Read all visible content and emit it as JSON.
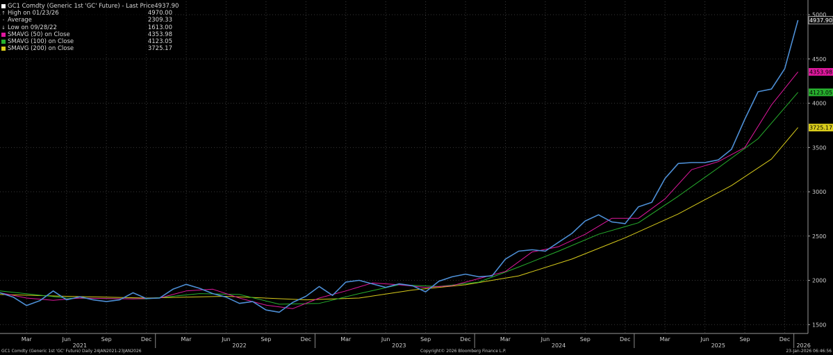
{
  "legend": {
    "title": "GC1 Comdty (Generic 1st 'GC' Future) - Last Price",
    "title_value": "4937.90",
    "rows": [
      {
        "label": "High on 01/23/26",
        "value": "4970.00",
        "glyph": "↑"
      },
      {
        "label": "Average",
        "value": "2309.33",
        "glyph": "-"
      },
      {
        "label": "Low on 09/28/22",
        "value": "1613.00",
        "glyph": "↓"
      },
      {
        "label": "SMAVG (50)  on Close",
        "value": "4353.98",
        "color": "#e0189e"
      },
      {
        "label": "SMAVG (100)  on Close",
        "value": "4123.05",
        "color": "#27b12e"
      },
      {
        "label": "SMAVG (200)  on Close",
        "value": "3725.17",
        "color": "#d9cc1b"
      }
    ]
  },
  "footer": {
    "left": "GC1 Comdty (Generic 1st 'GC' Future) Daily 24JAN2021-23JAN2026",
    "center": "Copyright© 2026 Bloomberg Finance L.P.",
    "right": "23-Jan-2026 06:46:56"
  },
  "chart_data": {
    "type": "line",
    "x_start": "2021-01",
    "x_end": "2026-01",
    "ylim": [
      1400,
      5150
    ],
    "yticks": [
      1500,
      2000,
      2500,
      3000,
      3500,
      4000,
      4500,
      5000
    ],
    "month_labels": [
      {
        "date": "2021-03",
        "label": "Mar"
      },
      {
        "date": "2021-06",
        "label": "Jun"
      },
      {
        "date": "2021-09",
        "label": "Sep"
      },
      {
        "date": "2021-12",
        "label": "Dec"
      },
      {
        "date": "2022-03",
        "label": "Mar"
      },
      {
        "date": "2022-06",
        "label": "Jun"
      },
      {
        "date": "2022-09",
        "label": "Sep"
      },
      {
        "date": "2022-12",
        "label": "Dec"
      },
      {
        "date": "2023-03",
        "label": "Mar"
      },
      {
        "date": "2023-06",
        "label": "Jun"
      },
      {
        "date": "2023-09",
        "label": "Sep"
      },
      {
        "date": "2023-12",
        "label": "Dec"
      },
      {
        "date": "2024-03",
        "label": "Mar"
      },
      {
        "date": "2024-06",
        "label": "Jun"
      },
      {
        "date": "2024-09",
        "label": "Sep"
      },
      {
        "date": "2024-12",
        "label": "Dec"
      },
      {
        "date": "2025-03",
        "label": "Mar"
      },
      {
        "date": "2025-06",
        "label": "Jun"
      },
      {
        "date": "2025-09",
        "label": "Sep"
      },
      {
        "date": "2025-12",
        "label": "Dec"
      }
    ],
    "year_labels": [
      {
        "date": "2021-07",
        "label": "2021"
      },
      {
        "date": "2022-07",
        "label": "2022"
      },
      {
        "date": "2023-07",
        "label": "2023"
      },
      {
        "date": "2024-07",
        "label": "2024"
      },
      {
        "date": "2025-07",
        "label": "2025"
      },
      {
        "date": "2026-01",
        "label": "2026"
      }
    ],
    "last_value_tags": [
      {
        "value": 4937.9,
        "label": "4937.90",
        "bg": "#111111",
        "fg": "#ffffff",
        "border": "#ffffff"
      },
      {
        "value": 4353.98,
        "label": "4353.98",
        "bg": "#e0189e",
        "fg": "#000000"
      },
      {
        "value": 4123.05,
        "label": "4123.05",
        "bg": "#27b12e",
        "fg": "#000000"
      },
      {
        "value": 3725.17,
        "label": "3725.17",
        "bg": "#d9cc1b",
        "fg": "#000000"
      }
    ],
    "series": [
      {
        "name": "Last Price",
        "color": "#4d8fd6",
        "points": [
          [
            "2021-01",
            1860
          ],
          [
            "2021-02",
            1810
          ],
          [
            "2021-03",
            1715
          ],
          [
            "2021-04",
            1770
          ],
          [
            "2021-05",
            1880
          ],
          [
            "2021-06",
            1780
          ],
          [
            "2021-07",
            1815
          ],
          [
            "2021-08",
            1780
          ],
          [
            "2021-09",
            1760
          ],
          [
            "2021-10",
            1780
          ],
          [
            "2021-11",
            1860
          ],
          [
            "2021-12",
            1795
          ],
          [
            "2022-01",
            1800
          ],
          [
            "2022-02",
            1900
          ],
          [
            "2022-03",
            1955
          ],
          [
            "2022-04",
            1910
          ],
          [
            "2022-05",
            1850
          ],
          [
            "2022-06",
            1810
          ],
          [
            "2022-07",
            1740
          ],
          [
            "2022-08",
            1760
          ],
          [
            "2022-09",
            1665
          ],
          [
            "2022-10",
            1640
          ],
          [
            "2022-11",
            1750
          ],
          [
            "2022-12",
            1820
          ],
          [
            "2023-01",
            1930
          ],
          [
            "2023-02",
            1830
          ],
          [
            "2023-03",
            1980
          ],
          [
            "2023-04",
            2000
          ],
          [
            "2023-05",
            1960
          ],
          [
            "2023-06",
            1920
          ],
          [
            "2023-07",
            1960
          ],
          [
            "2023-08",
            1940
          ],
          [
            "2023-09",
            1870
          ],
          [
            "2023-10",
            1990
          ],
          [
            "2023-11",
            2040
          ],
          [
            "2023-12",
            2070
          ],
          [
            "2024-01",
            2040
          ],
          [
            "2024-02",
            2050
          ],
          [
            "2024-03",
            2240
          ],
          [
            "2024-04",
            2330
          ],
          [
            "2024-05",
            2345
          ],
          [
            "2024-06",
            2330
          ],
          [
            "2024-07",
            2430
          ],
          [
            "2024-08",
            2530
          ],
          [
            "2024-09",
            2670
          ],
          [
            "2024-10",
            2740
          ],
          [
            "2024-11",
            2660
          ],
          [
            "2024-12",
            2640
          ],
          [
            "2025-01",
            2830
          ],
          [
            "2025-02",
            2880
          ],
          [
            "2025-03",
            3150
          ],
          [
            "2025-04",
            3320
          ],
          [
            "2025-05",
            3330
          ],
          [
            "2025-06",
            3330
          ],
          [
            "2025-07",
            3360
          ],
          [
            "2025-08",
            3480
          ],
          [
            "2025-09",
            3820
          ],
          [
            "2025-10",
            4130
          ],
          [
            "2025-11",
            4160
          ],
          [
            "2025-12",
            4390
          ],
          [
            "2026-01",
            4937.9
          ]
        ]
      },
      {
        "name": "SMAVG (50)  on Close",
        "color": "#e0189e",
        "points": [
          [
            "2021-01",
            1860
          ],
          [
            "2021-03",
            1800
          ],
          [
            "2021-05",
            1775
          ],
          [
            "2021-07",
            1800
          ],
          [
            "2021-09",
            1795
          ],
          [
            "2021-11",
            1790
          ],
          [
            "2022-01",
            1800
          ],
          [
            "2022-03",
            1880
          ],
          [
            "2022-05",
            1900
          ],
          [
            "2022-07",
            1800
          ],
          [
            "2022-09",
            1720
          ],
          [
            "2022-11",
            1680
          ],
          [
            "2023-01",
            1800
          ],
          [
            "2023-03",
            1880
          ],
          [
            "2023-05",
            1970
          ],
          [
            "2023-07",
            1950
          ],
          [
            "2023-09",
            1920
          ],
          [
            "2023-11",
            1940
          ],
          [
            "2024-01",
            2020
          ],
          [
            "2024-03",
            2100
          ],
          [
            "2024-05",
            2320
          ],
          [
            "2024-07",
            2380
          ],
          [
            "2024-09",
            2520
          ],
          [
            "2024-11",
            2700
          ],
          [
            "2025-01",
            2700
          ],
          [
            "2025-03",
            2920
          ],
          [
            "2025-05",
            3250
          ],
          [
            "2025-07",
            3340
          ],
          [
            "2025-09",
            3500
          ],
          [
            "2025-11",
            3980
          ],
          [
            "2026-01",
            4353.98
          ]
        ]
      },
      {
        "name": "SMAVG (100)  on Close",
        "color": "#27b12e",
        "points": [
          [
            "2021-01",
            1880
          ],
          [
            "2021-06",
            1800
          ],
          [
            "2021-12",
            1790
          ],
          [
            "2022-04",
            1850
          ],
          [
            "2022-07",
            1840
          ],
          [
            "2022-10",
            1730
          ],
          [
            "2023-01",
            1740
          ],
          [
            "2023-04",
            1850
          ],
          [
            "2023-07",
            1950
          ],
          [
            "2023-10",
            1930
          ],
          [
            "2024-01",
            1980
          ],
          [
            "2024-04",
            2150
          ],
          [
            "2024-07",
            2330
          ],
          [
            "2024-10",
            2520
          ],
          [
            "2025-01",
            2650
          ],
          [
            "2025-04",
            2950
          ],
          [
            "2025-07",
            3270
          ],
          [
            "2025-10",
            3600
          ],
          [
            "2026-01",
            4123.05
          ]
        ]
      },
      {
        "name": "SMAVG (200)  on Close",
        "color": "#d9cc1b",
        "points": [
          [
            "2021-01",
            1840
          ],
          [
            "2021-06",
            1820
          ],
          [
            "2021-12",
            1800
          ],
          [
            "2022-06",
            1820
          ],
          [
            "2022-12",
            1780
          ],
          [
            "2023-04",
            1800
          ],
          [
            "2023-08",
            1890
          ],
          [
            "2023-12",
            1950
          ],
          [
            "2024-04",
            2050
          ],
          [
            "2024-08",
            2240
          ],
          [
            "2024-12",
            2480
          ],
          [
            "2025-04",
            2750
          ],
          [
            "2025-08",
            3070
          ],
          [
            "2025-11",
            3370
          ],
          [
            "2026-01",
            3725.17
          ]
        ]
      }
    ]
  }
}
